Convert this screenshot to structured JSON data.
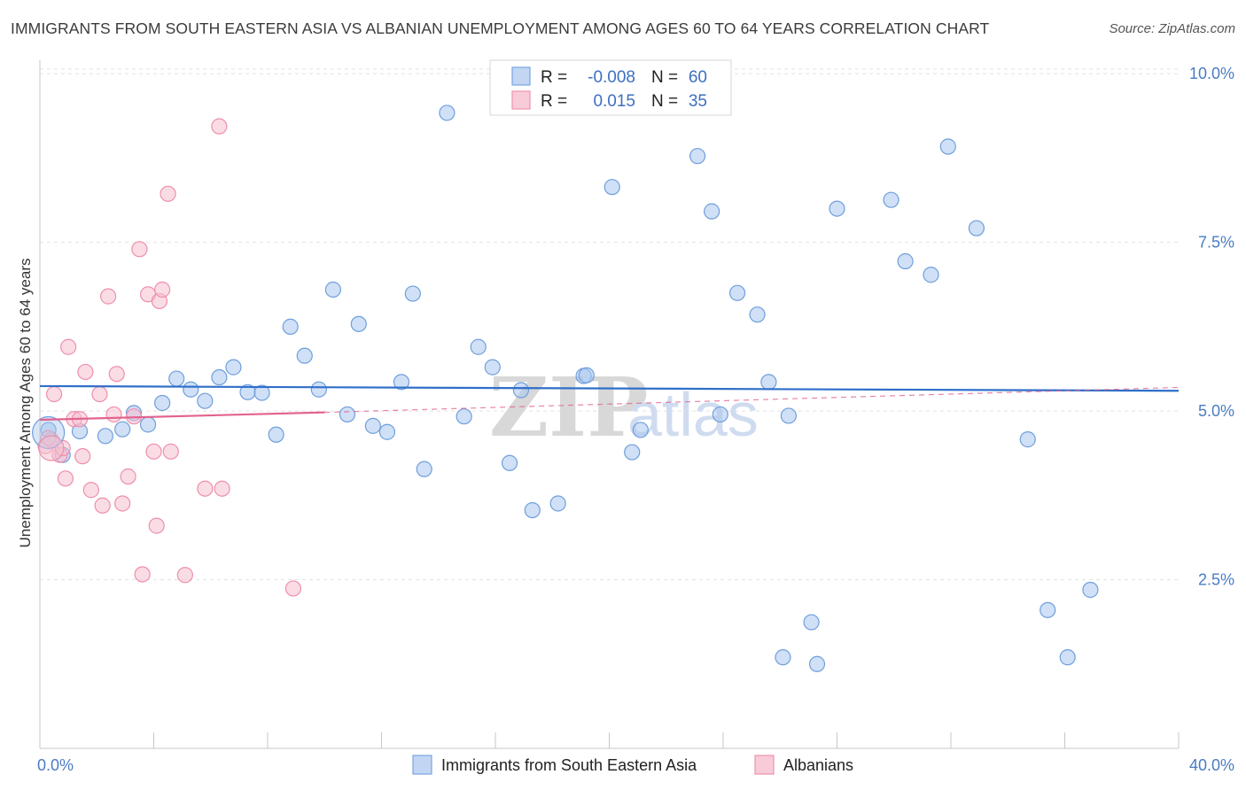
{
  "chart_data": {
    "type": "scatter",
    "title": "IMMIGRANTS FROM SOUTH EASTERN ASIA VS ALBANIAN UNEMPLOYMENT AMONG AGES 60 TO 64 YEARS CORRELATION CHART",
    "source": "Source: ZipAtlas.com",
    "ylabel": "Unemployment Among Ages 60 to 64 years",
    "xlim": [
      0,
      40
    ],
    "ylim": [
      0,
      10.2
    ],
    "x_tick_labels": [
      {
        "value": 0,
        "label": "0.0%"
      },
      {
        "value": 40,
        "label": "40.0%"
      }
    ],
    "y_tick_labels": [
      {
        "value": 2.5,
        "label": "2.5%"
      },
      {
        "value": 5.0,
        "label": "5.0%"
      },
      {
        "value": 7.5,
        "label": "7.5%"
      },
      {
        "value": 10.0,
        "label": "10.0%"
      }
    ],
    "watermark": {
      "zip": "ZIP",
      "atlas": "atlas"
    },
    "legend": [
      {
        "r_label": "R =",
        "r_value": "-0.008",
        "n_label": "N =",
        "n_value": "60"
      },
      {
        "r_label": "R =",
        "r_value": "0.015",
        "n_label": "N =",
        "n_value": "35"
      }
    ],
    "series": [
      {
        "name": "Immigrants from South Eastern Asia",
        "color": "#a9c7ee",
        "stroke": "#6f9fdc",
        "line_color": "#2f6fc9",
        "trend": {
          "x0": 0,
          "y0": 5.37,
          "x1": 40,
          "y1": 5.3,
          "dashed_from": null
        },
        "points": [
          [
            0.3,
            4.72
          ],
          [
            0.8,
            4.35
          ],
          [
            1.4,
            4.7
          ],
          [
            2.3,
            4.63
          ],
          [
            2.9,
            4.73
          ],
          [
            3.3,
            4.97
          ],
          [
            3.8,
            4.8
          ],
          [
            4.3,
            5.12
          ],
          [
            4.8,
            5.48
          ],
          [
            5.3,
            5.32
          ],
          [
            5.8,
            5.15
          ],
          [
            6.3,
            5.5
          ],
          [
            6.8,
            5.65
          ],
          [
            7.3,
            5.28
          ],
          [
            7.8,
            5.27
          ],
          [
            8.3,
            4.65
          ],
          [
            8.8,
            6.25
          ],
          [
            9.3,
            5.82
          ],
          [
            9.8,
            5.32
          ],
          [
            10.3,
            6.8
          ],
          [
            10.8,
            4.95
          ],
          [
            11.2,
            6.29
          ],
          [
            11.7,
            4.78
          ],
          [
            12.2,
            4.69
          ],
          [
            12.7,
            5.43
          ],
          [
            13.1,
            6.74
          ],
          [
            13.5,
            4.14
          ],
          [
            14.3,
            9.42
          ],
          [
            14.9,
            4.92
          ],
          [
            15.4,
            5.95
          ],
          [
            15.9,
            5.65
          ],
          [
            16.5,
            4.23
          ],
          [
            16.9,
            5.31
          ],
          [
            17.3,
            3.53
          ],
          [
            18.2,
            3.63
          ],
          [
            19.1,
            5.52
          ],
          [
            19.2,
            5.53
          ],
          [
            20.1,
            8.32
          ],
          [
            20.8,
            4.39
          ],
          [
            21.1,
            4.72
          ],
          [
            23.1,
            8.78
          ],
          [
            23.6,
            7.96
          ],
          [
            23.9,
            4.95
          ],
          [
            24.5,
            6.75
          ],
          [
            25.2,
            6.43
          ],
          [
            25.6,
            5.43
          ],
          [
            26.3,
            4.93
          ],
          [
            26.1,
            1.35
          ],
          [
            27.1,
            1.87
          ],
          [
            27.3,
            1.25
          ],
          [
            28.0,
            8.0
          ],
          [
            29.9,
            8.13
          ],
          [
            30.4,
            7.22
          ],
          [
            31.3,
            7.02
          ],
          [
            31.9,
            8.92
          ],
          [
            32.9,
            7.71
          ],
          [
            34.7,
            4.58
          ],
          [
            35.4,
            2.05
          ],
          [
            36.1,
            1.35
          ],
          [
            36.9,
            2.35
          ]
        ]
      },
      {
        "name": "Albanians",
        "color": "#f6bfcf",
        "stroke": "#ee8fab",
        "line_color": "#e2648f",
        "trend": {
          "x0": 0,
          "y0": 4.87,
          "x1": 10,
          "y1": 4.98,
          "dashed_from": 10,
          "x2": 40,
          "y2": 5.35
        },
        "points": [
          [
            0.2,
            4.48
          ],
          [
            0.4,
            4.57
          ],
          [
            0.5,
            5.25
          ],
          [
            0.7,
            4.35
          ],
          [
            0.8,
            4.45
          ],
          [
            0.9,
            4.0
          ],
          [
            1.0,
            5.95
          ],
          [
            1.2,
            4.88
          ],
          [
            1.4,
            4.88
          ],
          [
            1.5,
            4.33
          ],
          [
            1.6,
            5.58
          ],
          [
            1.8,
            3.83
          ],
          [
            2.1,
            5.25
          ],
          [
            2.2,
            3.6
          ],
          [
            2.4,
            6.7
          ],
          [
            2.6,
            4.95
          ],
          [
            2.7,
            5.55
          ],
          [
            2.9,
            3.63
          ],
          [
            3.1,
            4.03
          ],
          [
            3.3,
            4.92
          ],
          [
            3.5,
            7.4
          ],
          [
            3.6,
            2.58
          ],
          [
            3.8,
            6.73
          ],
          [
            4.0,
            4.4
          ],
          [
            4.1,
            3.3
          ],
          [
            4.2,
            6.63
          ],
          [
            4.3,
            6.8
          ],
          [
            4.5,
            8.22
          ],
          [
            4.6,
            4.4
          ],
          [
            5.1,
            2.57
          ],
          [
            5.8,
            3.85
          ],
          [
            6.3,
            9.22
          ],
          [
            6.4,
            3.85
          ],
          [
            8.9,
            2.37
          ],
          [
            0.3,
            4.6
          ]
        ]
      }
    ]
  },
  "grid_color": "#e3e3e3",
  "axis_color": "#c7c7c7"
}
